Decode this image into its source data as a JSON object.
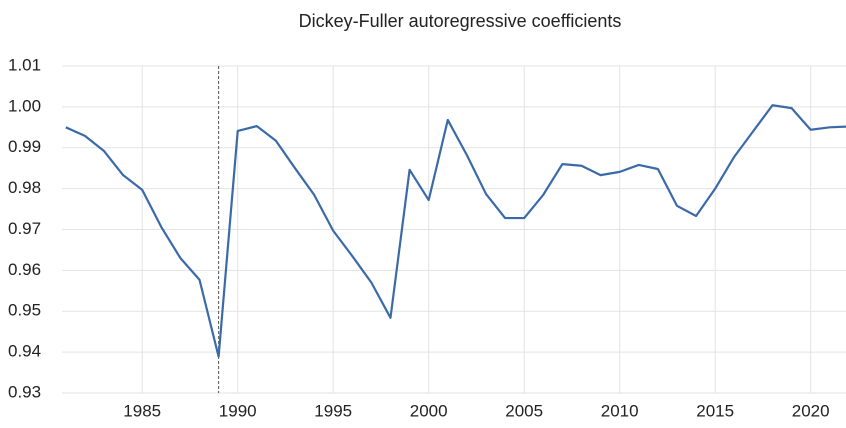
{
  "chart_data": {
    "type": "line",
    "title": "Dickey-Fuller autoregressive coefficients",
    "x": [
      1981,
      1982,
      1983,
      1984,
      1985,
      1986,
      1987,
      1988,
      1989,
      1990,
      1991,
      1992,
      1993,
      1994,
      1995,
      1996,
      1997,
      1998,
      1999,
      2000,
      2001,
      2002,
      2003,
      2004,
      2005,
      2006,
      2007,
      2008,
      2009,
      2010,
      2011,
      2012,
      2013,
      2014,
      2015,
      2016,
      2017,
      2018,
      2019,
      2020,
      2021,
      2022
    ],
    "series": [
      {
        "name": "coefficient",
        "color": "#3c6aa9",
        "values": [
          0.995,
          0.9929,
          0.9892,
          0.9833,
          0.9797,
          0.9706,
          0.963,
          0.9577,
          0.9389,
          0.9941,
          0.9953,
          0.9917,
          0.985,
          0.9785,
          0.9697,
          0.9635,
          0.957,
          0.9484,
          0.9846,
          0.9772,
          0.9968,
          0.9882,
          0.9787,
          0.9728,
          0.9728,
          0.9785,
          0.986,
          0.9856,
          0.9833,
          0.9841,
          0.9858,
          0.9848,
          0.9758,
          0.9733,
          0.98,
          0.9878,
          0.9941,
          1.0004,
          0.9997,
          0.9944,
          0.995,
          0.9952
        ]
      }
    ],
    "xlim": [
      1980.8,
      2021.85
    ],
    "xticks": [
      1985,
      1990,
      1995,
      2000,
      2005,
      2010,
      2015,
      2020
    ],
    "ylim": [
      0.93,
      1.01
    ],
    "yticks": [
      1.01,
      {
        "value": 1,
        "label": "1.00"
      },
      0.99,
      0.98,
      0.97,
      0.96,
      0.95,
      0.94,
      0.93
    ],
    "vline": 1989,
    "grid": true
  }
}
